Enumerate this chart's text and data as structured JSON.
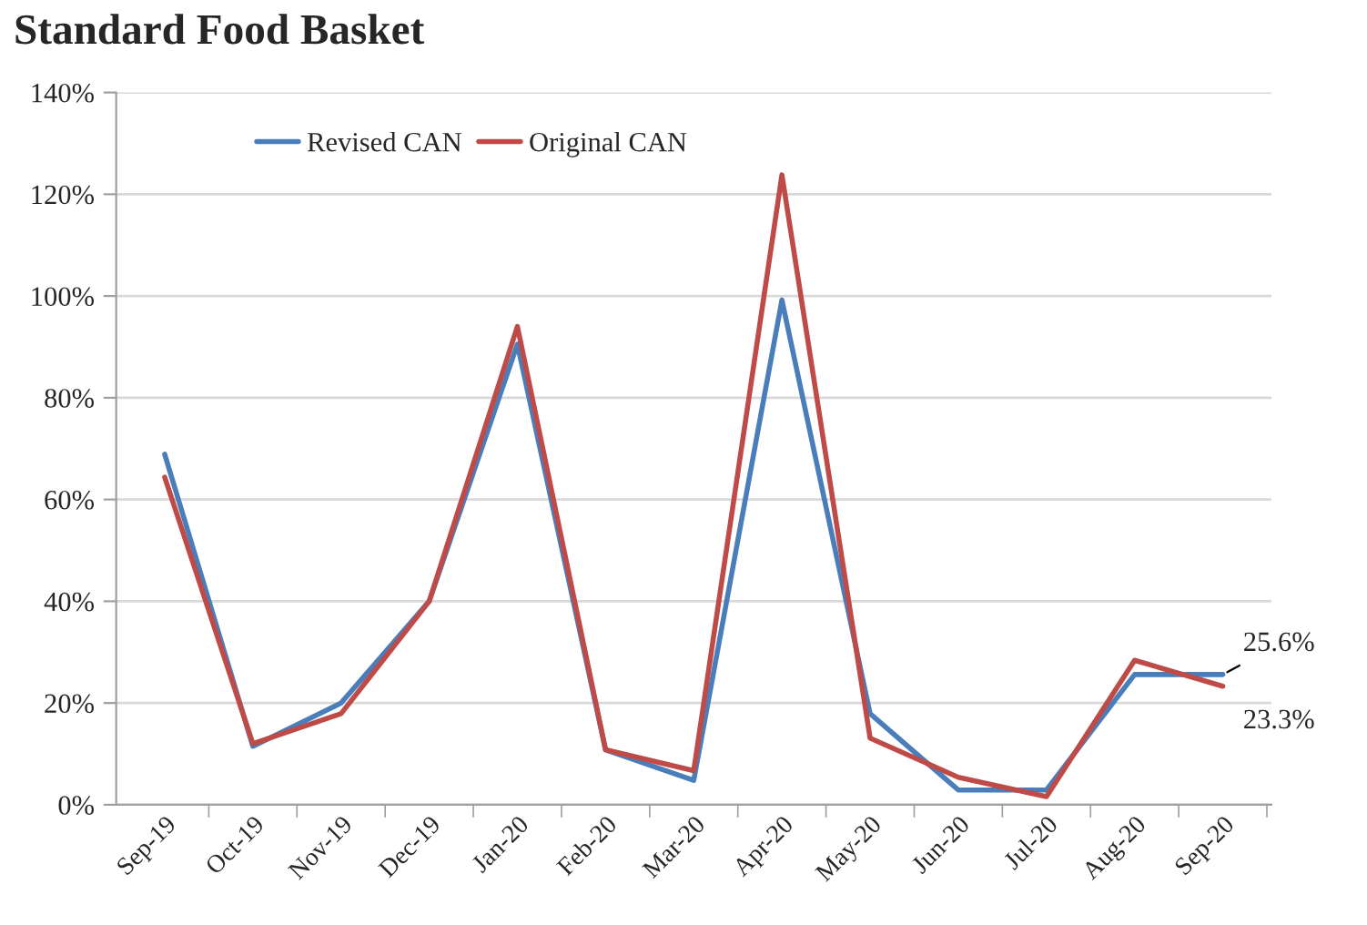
{
  "chart_data": {
    "type": "line",
    "title": "Standard Food Basket",
    "categories": [
      "Sep-19",
      "Oct-19",
      "Nov-19",
      "Dec-19",
      "Jan-20",
      "Feb-20",
      "Mar-20",
      "Apr-20",
      "May-20",
      "Jun-20",
      "Jul-20",
      "Aug-20",
      "Sep-20"
    ],
    "series": [
      {
        "name": "Revised CAN",
        "color": "#4a7ebb",
        "values": [
          68.9,
          11.5,
          20,
          40,
          90.5,
          10.8,
          4.8,
          99.2,
          17.9,
          2.9,
          2.9,
          25.6,
          25.6
        ],
        "value_labels": [
          null,
          null,
          null,
          null,
          null,
          null,
          null,
          null,
          null,
          null,
          null,
          null,
          "25.6%"
        ]
      },
      {
        "name": "Original CAN",
        "color": "#be4b48",
        "values": [
          64.4,
          12,
          17.9,
          40,
          94,
          10.8,
          6.7,
          123.8,
          13.1,
          5.4,
          1.6,
          28.4,
          23.3
        ],
        "value_labels": [
          null,
          null,
          null,
          null,
          null,
          null,
          null,
          null,
          null,
          null,
          null,
          null,
          "23.3%"
        ]
      }
    ],
    "ylim": [
      0,
      140
    ],
    "yticks": [
      {
        "value": 0,
        "label": "0%"
      },
      {
        "value": 20,
        "label": "20%"
      },
      {
        "value": 40,
        "label": "40%"
      },
      {
        "value": 60,
        "label": "60%"
      },
      {
        "value": 80,
        "label": "80%"
      },
      {
        "value": 100,
        "label": "100%"
      },
      {
        "value": 120,
        "label": "120%"
      },
      {
        "value": 140,
        "label": "140%"
      }
    ],
    "grid": "y",
    "legend": "top left",
    "marker": "none",
    "line_style": "solid"
  }
}
